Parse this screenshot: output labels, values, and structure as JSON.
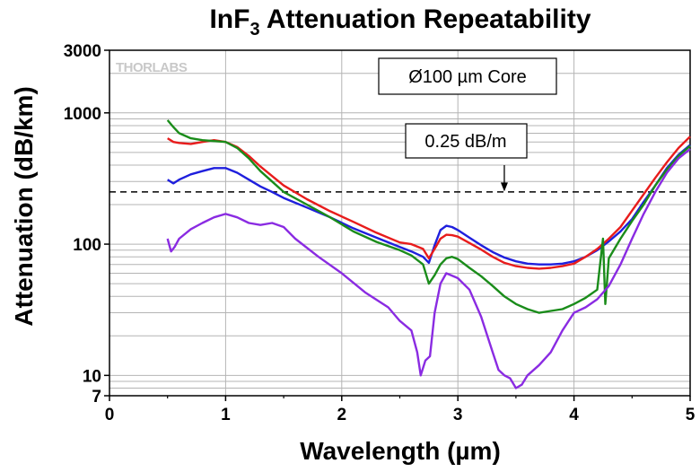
{
  "chart_data": {
    "type": "line",
    "title_main": "InF",
    "title_sub": "3",
    "title_rest": " Attenuation Repeatability",
    "xlabel": "Wavelength (µm)",
    "ylabel": "Attenuation (dB/km)",
    "xlim": [
      0,
      5
    ],
    "ylim": [
      7,
      3000
    ],
    "yscale": "log",
    "grid": true,
    "x_ticks": [
      "0",
      "1",
      "2",
      "3",
      "4",
      "5"
    ],
    "x_tick_values": [
      0,
      1,
      2,
      3,
      4,
      5
    ],
    "y_ticks": [
      "7",
      "10",
      "100",
      "1000",
      "3000"
    ],
    "y_tick_values": [
      7,
      10,
      100,
      1000,
      3000
    ],
    "logo": "THORLABS",
    "annotation_core": "Ø100 µm Core",
    "annotation_limit": "0.25 dB/m",
    "reference_line": {
      "y": 250,
      "style": "dashed"
    },
    "arrow": {
      "x": 3.4,
      "from_y": 400,
      "to_y": 252
    },
    "series": [
      {
        "color": "#1f1fdd",
        "x": [
          0.5,
          0.55,
          0.6,
          0.7,
          0.8,
          0.9,
          1.0,
          1.1,
          1.2,
          1.3,
          1.4,
          1.5,
          1.7,
          1.9,
          2.1,
          2.3,
          2.5,
          2.6,
          2.7,
          2.75,
          2.8,
          2.85,
          2.9,
          2.95,
          3.0,
          3.1,
          3.2,
          3.3,
          3.4,
          3.5,
          3.6,
          3.7,
          3.8,
          3.9,
          4.0,
          4.1,
          4.2,
          4.3,
          4.4,
          4.5,
          4.6,
          4.7,
          4.8,
          4.9,
          5.0
        ],
        "y": [
          310,
          290,
          310,
          340,
          360,
          380,
          380,
          350,
          310,
          275,
          250,
          225,
          190,
          160,
          132,
          112,
          95,
          88,
          80,
          72,
          98,
          128,
          138,
          135,
          128,
          112,
          98,
          87,
          79,
          74,
          71,
          70,
          70,
          71,
          74,
          80,
          90,
          105,
          125,
          155,
          210,
          280,
          380,
          480,
          570
        ]
      },
      {
        "color": "#e81c1c",
        "x": [
          0.5,
          0.55,
          0.6,
          0.7,
          0.8,
          0.9,
          1.0,
          1.1,
          1.2,
          1.3,
          1.4,
          1.5,
          1.7,
          1.9,
          2.1,
          2.3,
          2.5,
          2.6,
          2.7,
          2.75,
          2.8,
          2.85,
          2.9,
          2.95,
          3.0,
          3.1,
          3.2,
          3.3,
          3.4,
          3.5,
          3.6,
          3.7,
          3.8,
          3.9,
          4.0,
          4.1,
          4.2,
          4.3,
          4.4,
          4.5,
          4.6,
          4.7,
          4.8,
          4.9,
          5.0
        ],
        "y": [
          640,
          600,
          590,
          580,
          600,
          620,
          600,
          550,
          470,
          390,
          330,
          280,
          220,
          178,
          148,
          122,
          103,
          100,
          92,
          78,
          92,
          110,
          118,
          117,
          114,
          102,
          91,
          80,
          72,
          68,
          66,
          65,
          66,
          68,
          71,
          80,
          92,
          110,
          135,
          180,
          240,
          320,
          420,
          540,
          660
        ]
      },
      {
        "color": "#1a8c1a",
        "x": [
          0.5,
          0.55,
          0.6,
          0.7,
          0.8,
          0.9,
          1.0,
          1.1,
          1.2,
          1.3,
          1.4,
          1.5,
          1.7,
          1.9,
          2.1,
          2.3,
          2.5,
          2.6,
          2.7,
          2.75,
          2.8,
          2.85,
          2.9,
          2.95,
          3.0,
          3.1,
          3.2,
          3.3,
          3.4,
          3.5,
          3.6,
          3.7,
          3.8,
          3.9,
          4.0,
          4.1,
          4.2,
          4.25,
          4.27,
          4.3,
          4.4,
          4.5,
          4.6,
          4.7,
          4.8,
          4.9,
          5.0
        ],
        "y": [
          880,
          780,
          700,
          640,
          620,
          610,
          600,
          540,
          450,
          360,
          300,
          250,
          200,
          160,
          125,
          104,
          90,
          82,
          70,
          50,
          58,
          70,
          78,
          80,
          77,
          66,
          57,
          48,
          40,
          35,
          32,
          30,
          31,
          32,
          35,
          39,
          45,
          110,
          35,
          78,
          110,
          150,
          200,
          280,
          370,
          470,
          560
        ]
      },
      {
        "color": "#8a2be2",
        "x": [
          0.5,
          0.53,
          0.56,
          0.6,
          0.7,
          0.8,
          0.9,
          1.0,
          1.1,
          1.2,
          1.3,
          1.4,
          1.5,
          1.6,
          1.8,
          2.0,
          2.2,
          2.4,
          2.5,
          2.6,
          2.65,
          2.68,
          2.72,
          2.76,
          2.8,
          2.85,
          2.9,
          3.0,
          3.1,
          3.2,
          3.3,
          3.35,
          3.4,
          3.45,
          3.5,
          3.55,
          3.6,
          3.7,
          3.8,
          3.9,
          4.0,
          4.1,
          4.2,
          4.3,
          4.4,
          4.5,
          4.6,
          4.7,
          4.8,
          4.9,
          5.0
        ],
        "y": [
          110,
          88,
          95,
          110,
          130,
          145,
          160,
          170,
          160,
          145,
          140,
          145,
          135,
          110,
          80,
          60,
          43,
          33,
          26,
          22,
          15,
          10,
          13,
          14,
          30,
          50,
          60,
          55,
          45,
          28,
          15,
          11,
          10,
          9.5,
          8,
          8.5,
          10,
          12,
          15,
          22,
          30,
          33,
          38,
          48,
          70,
          110,
          170,
          250,
          350,
          450,
          530
        ]
      }
    ]
  }
}
